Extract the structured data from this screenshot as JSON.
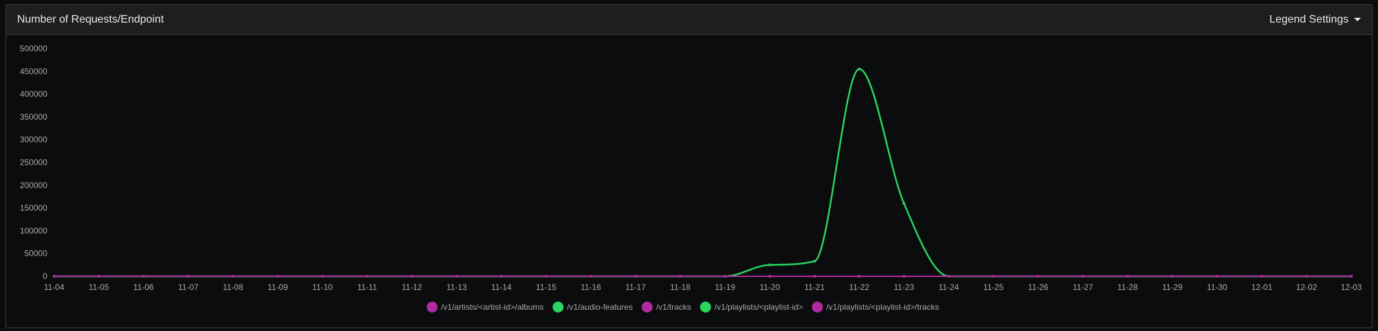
{
  "panel": {
    "title": "Number of Requests/Endpoint",
    "legend_settings_label": "Legend Settings"
  },
  "colors": {
    "background": "#0b0c0d",
    "header": "#1c1e1f",
    "border": "#3a3d40",
    "text": "#e9eaeb",
    "axis_text": "#a9abad",
    "green": "#2ad45f",
    "magenta": "#b02aa0"
  },
  "chart_data": {
    "type": "line",
    "ylim": [
      0,
      500000
    ],
    "yticks": [
      0,
      50000,
      100000,
      150000,
      200000,
      250000,
      300000,
      350000,
      400000,
      450000,
      500000
    ],
    "categories": [
      "11-04",
      "11-05",
      "11-06",
      "11-07",
      "11-08",
      "11-09",
      "11-10",
      "11-11",
      "11-12",
      "11-13",
      "11-14",
      "11-15",
      "11-16",
      "11-17",
      "11-18",
      "11-19",
      "11-20",
      "11-21",
      "11-22",
      "11-23",
      "11-24",
      "11-25",
      "11-26",
      "11-27",
      "11-28",
      "11-29",
      "11-30",
      "12-01",
      "12-02",
      "12-03"
    ],
    "grid": false,
    "legend_position": "bottom",
    "series": [
      {
        "name": "/v1/artists/<artist-id>/albums",
        "color": "#b02aa0",
        "values": [
          0,
          0,
          0,
          0,
          0,
          0,
          0,
          0,
          0,
          0,
          0,
          0,
          0,
          0,
          0,
          0,
          0,
          0,
          0,
          0,
          0,
          0,
          0,
          0,
          0,
          0,
          0,
          0,
          0,
          0
        ]
      },
      {
        "name": "/v1/audio-features",
        "color": "#2ad45f",
        "values": [
          0,
          0,
          0,
          0,
          0,
          0,
          0,
          0,
          0,
          0,
          0,
          0,
          0,
          0,
          0,
          0,
          25000,
          33000,
          455000,
          160000,
          0,
          0,
          0,
          0,
          0,
          0,
          0,
          0,
          0,
          0
        ]
      },
      {
        "name": "/v1/tracks",
        "color": "#b02aa0",
        "values": [
          0,
          0,
          0,
          0,
          0,
          0,
          0,
          0,
          0,
          0,
          0,
          0,
          0,
          0,
          0,
          0,
          0,
          0,
          0,
          0,
          0,
          0,
          0,
          0,
          0,
          0,
          0,
          0,
          0,
          0
        ]
      },
      {
        "name": "/v1/playlists/<playlist-id>",
        "color": "#2ad45f",
        "values": [
          0,
          0,
          0,
          0,
          0,
          0,
          0,
          0,
          0,
          0,
          0,
          0,
          0,
          0,
          0,
          0,
          0,
          0,
          0,
          0,
          0,
          0,
          0,
          0,
          0,
          0,
          0,
          0,
          0,
          0
        ]
      },
      {
        "name": "/v1/playlists/<playlist-id>/tracks",
        "color": "#b02aa0",
        "values": [
          0,
          0,
          0,
          0,
          0,
          0,
          0,
          0,
          0,
          0,
          0,
          0,
          0,
          0,
          0,
          0,
          0,
          0,
          0,
          0,
          0,
          0,
          0,
          0,
          0,
          0,
          0,
          0,
          0,
          0
        ]
      }
    ]
  }
}
